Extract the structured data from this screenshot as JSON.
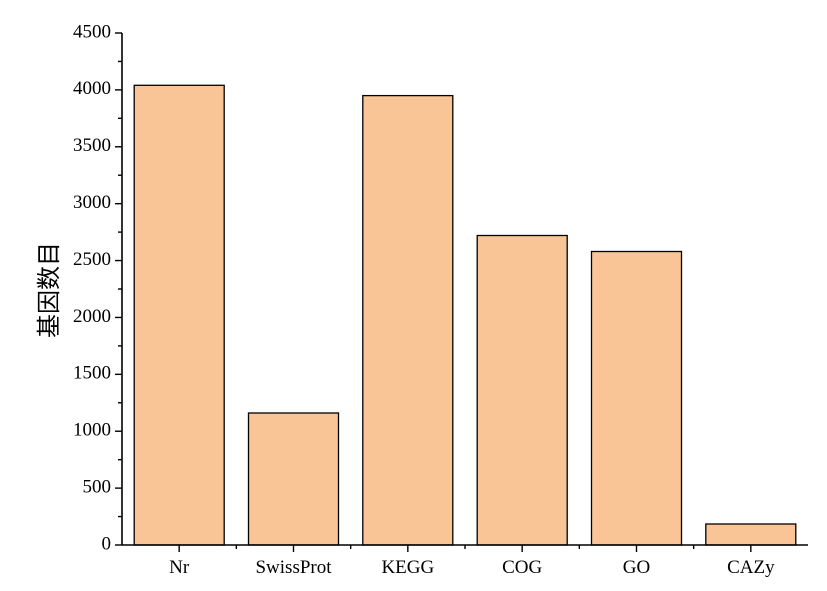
{
  "chart_data": {
    "type": "bar",
    "categories": [
      "Nr",
      "SwissProt",
      "KEGG",
      "COG",
      "GO",
      "CAZy"
    ],
    "values": [
      4040,
      1160,
      3950,
      2720,
      2580,
      185
    ],
    "title": "",
    "xlabel": "",
    "ylabel": "基因数目",
    "ylim": [
      0,
      4500
    ],
    "yticks": [
      0,
      500,
      1000,
      1500,
      2000,
      2500,
      3000,
      3500,
      4000,
      4500
    ],
    "grid": false,
    "legend": "none",
    "bar_color": "#f9c597",
    "edge_color": "#000000"
  }
}
